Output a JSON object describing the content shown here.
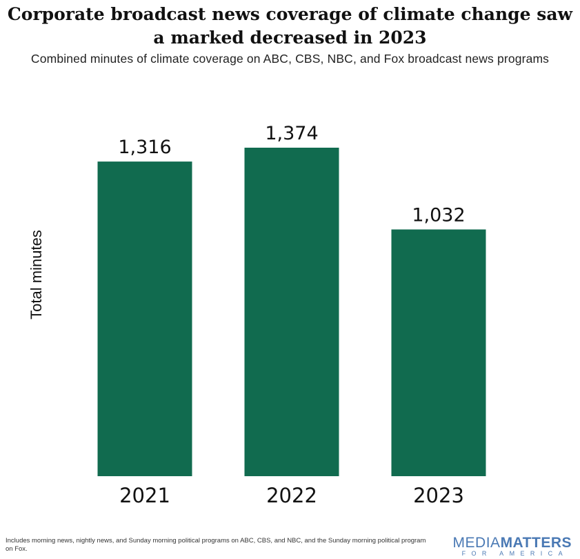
{
  "title_lines": [
    "Corporate broadcast news coverage of climate change saw",
    "a marked decreased in 2023"
  ],
  "subtitle": "Combined minutes of climate coverage on ABC, CBS, NBC, and Fox broadcast news programs",
  "chart_data": {
    "type": "bar",
    "title": "Corporate broadcast news coverage of climate change saw a marked decreased in 2023",
    "subtitle": "Combined minutes of climate coverage on ABC, CBS, NBC, and Fox broadcast news programs",
    "xlabel": "",
    "ylabel": "Total minutes",
    "categories": [
      "2021",
      "2022",
      "2023"
    ],
    "values": [
      1316,
      1374,
      1032
    ],
    "value_labels": [
      "1,316",
      "1,374",
      "1,032"
    ],
    "ylim": [
      0,
      1374
    ],
    "grid": false,
    "bar_color": "#116b4f"
  },
  "footnote": "Includes morning news, nightly news, and Sunday morning political programs on ABC, CBS, and NBC, and the Sunday morning political program on Fox.",
  "logo": {
    "media": "MEDIA",
    "matters": "MATTERS",
    "sub": "FOR AMERICA",
    "color": "#4a79b4"
  }
}
